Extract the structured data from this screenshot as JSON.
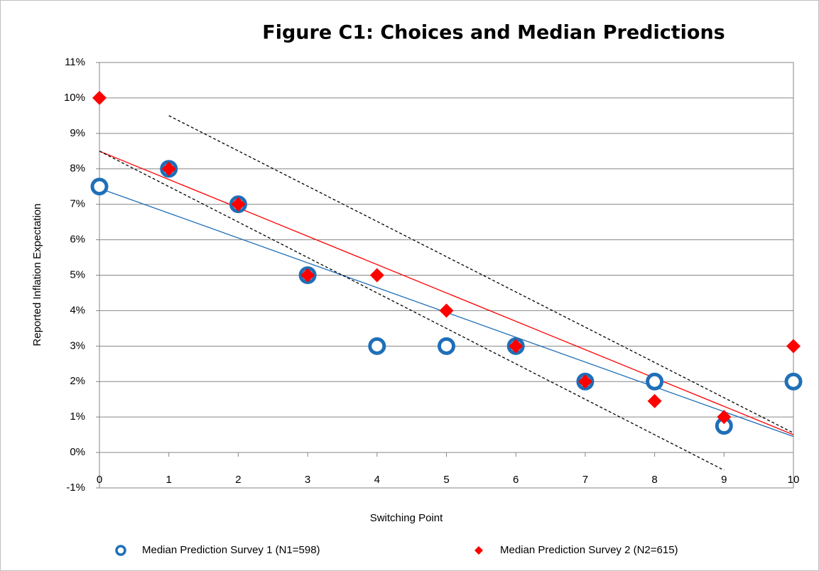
{
  "chart_data": {
    "type": "scatter",
    "title": "Figure C1: Choices and Median Predictions",
    "x_label": "Switching Point",
    "y_label": "Reported Inflation Expectation",
    "x": [
      0,
      1,
      2,
      3,
      4,
      5,
      6,
      7,
      8,
      9,
      10
    ],
    "xlim": [
      0,
      10
    ],
    "xticks": [
      0,
      1,
      2,
      3,
      4,
      5,
      6,
      7,
      8,
      9,
      10
    ],
    "ylim": [
      -1,
      11
    ],
    "yticks": [
      {
        "value": -1,
        "label": "-1%"
      },
      {
        "value": 0,
        "label": "0%"
      },
      {
        "value": 1,
        "label": "1%"
      },
      {
        "value": 2,
        "label": "2%"
      },
      {
        "value": 3,
        "label": "3%"
      },
      {
        "value": 4,
        "label": "4%"
      },
      {
        "value": 5,
        "label": "5%"
      },
      {
        "value": 6,
        "label": "6%"
      },
      {
        "value": 7,
        "label": "7%"
      },
      {
        "value": 8,
        "label": "8%"
      },
      {
        "value": 9,
        "label": "9%"
      },
      {
        "value": 10,
        "label": "10%"
      },
      {
        "value": 11,
        "label": "11%"
      }
    ],
    "grid": true,
    "legend": "bottom",
    "series": [
      {
        "name": "Median Prediction Survey 1 (N1=598)",
        "color": "#1f6fb8",
        "marker": "ring",
        "values": [
          7.5,
          8,
          7,
          5,
          3,
          3,
          3,
          2,
          2,
          0.75,
          2
        ]
      },
      {
        "name": "Median Prediction Survey 2 (N2=615)",
        "color": "#ff0000",
        "marker": "diamond",
        "values": [
          10,
          8,
          7,
          5,
          5,
          4,
          3,
          2,
          1.45,
          1,
          3
        ]
      }
    ],
    "trendlines": [
      {
        "color": "#1f6fb8",
        "dash": false,
        "x": [
          0,
          10
        ],
        "y": [
          7.45,
          0.45
        ]
      },
      {
        "color": "#ff0000",
        "dash": false,
        "x": [
          0,
          10
        ],
        "y": [
          8.5,
          0.5
        ]
      },
      {
        "color": "#000000",
        "dash": true,
        "x": [
          1,
          10
        ],
        "y": [
          9.5,
          0.55
        ]
      },
      {
        "color": "#000000",
        "dash": true,
        "x": [
          0,
          9
        ],
        "y": [
          8.5,
          -0.5
        ]
      }
    ]
  }
}
